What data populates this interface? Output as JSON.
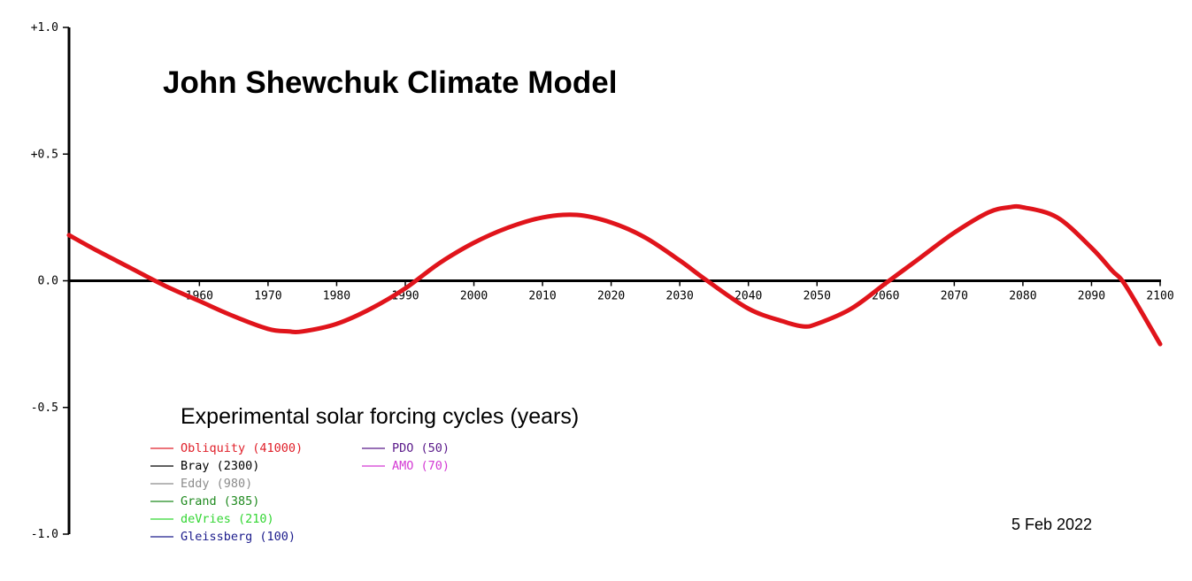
{
  "chart_data": {
    "type": "line",
    "title": "John Shewchuk Climate Model",
    "subtitle": "Experimental solar forcing cycles (years)",
    "date": "5 Feb 2022",
    "xlim": [
      1941,
      2100
    ],
    "ylim": [
      -1.0,
      1.0
    ],
    "x_ticks": [
      1960,
      1970,
      1980,
      1990,
      2000,
      2010,
      2020,
      2030,
      2040,
      2050,
      2060,
      2070,
      2080,
      2090,
      2100
    ],
    "y_ticks": [
      {
        "value": 1.0,
        "label": "+1.0"
      },
      {
        "value": 0.5,
        "label": "+0.5"
      },
      {
        "value": 0.0,
        "label": "0.0"
      },
      {
        "value": -0.5,
        "label": "-0.5"
      },
      {
        "value": -1.0,
        "label": "-1.0"
      }
    ],
    "grid": false,
    "legend_placement": "bottom-left",
    "legend": [
      {
        "name": "Obliquity (41000)",
        "color": "#e0202a"
      },
      {
        "name": "Bray (2300)",
        "color": "#000000"
      },
      {
        "name": "Eddy (980)",
        "color": "#8c8c8c"
      },
      {
        "name": "Grand (385)",
        "color": "#1f8a1f"
      },
      {
        "name": "deVries (210)",
        "color": "#33d633"
      },
      {
        "name": "Gleissberg (100)",
        "color": "#1c1c8c"
      },
      {
        "name": "PDO (50)",
        "color": "#5a1a8a"
      },
      {
        "name": "AMO (70)",
        "color": "#d43bd4"
      }
    ],
    "series": [
      {
        "color": "#e0141b",
        "x": [
          1941,
          1945,
          1950,
          1955,
          1960,
          1965,
          1970,
          1973,
          1975,
          1980,
          1985,
          1990,
          1995,
          2000,
          2005,
          2010,
          2015,
          2020,
          2025,
          2030,
          2034,
          2040,
          2045,
          2048,
          2050,
          2055,
          2060,
          2065,
          2070,
          2075,
          2078,
          2080,
          2085,
          2090,
          2093,
          2095,
          2100
        ],
        "y": [
          0.18,
          0.12,
          0.05,
          -0.02,
          -0.08,
          -0.14,
          -0.19,
          -0.2,
          -0.2,
          -0.17,
          -0.11,
          -0.03,
          0.07,
          0.15,
          0.21,
          0.25,
          0.26,
          0.23,
          0.17,
          0.08,
          0.0,
          -0.11,
          -0.16,
          -0.18,
          -0.17,
          -0.11,
          -0.01,
          0.09,
          0.19,
          0.27,
          0.29,
          0.29,
          0.25,
          0.13,
          0.04,
          -0.02,
          -0.25
        ]
      }
    ]
  }
}
